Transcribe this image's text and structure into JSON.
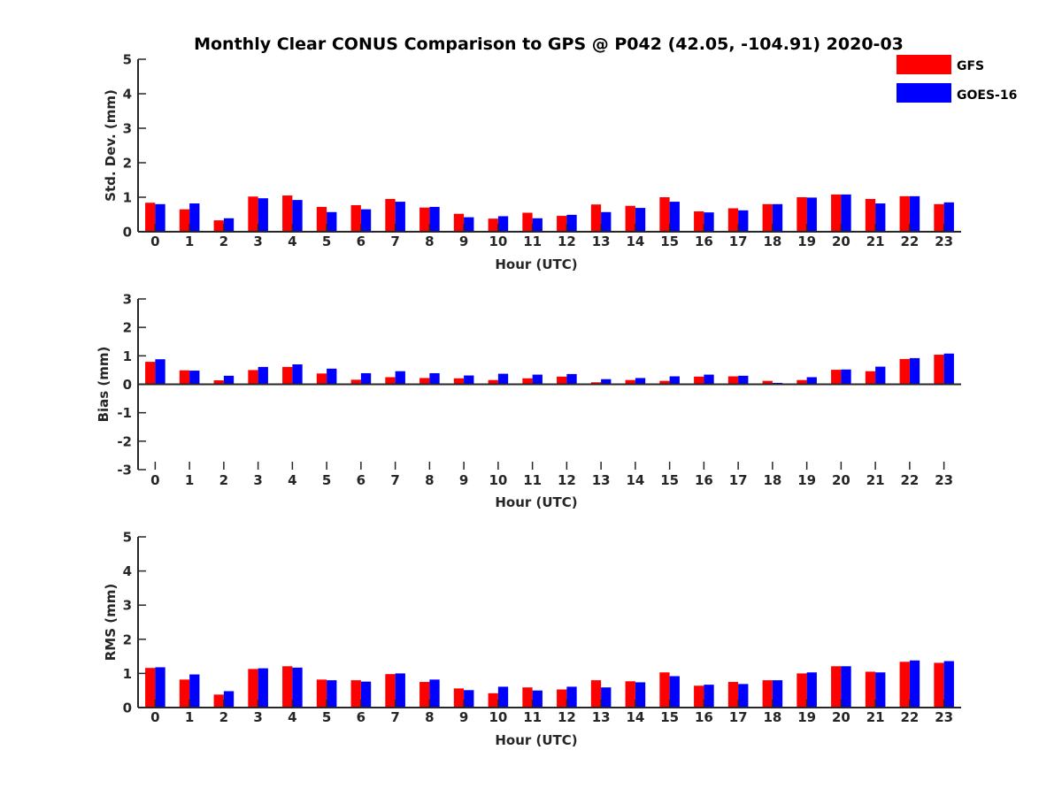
{
  "title": "Monthly Clear CONUS Comparison to GPS @ P042 (42.05, -104.91) 2020-03",
  "legend": [
    {
      "name": "GFS",
      "color": "#ff0000"
    },
    {
      "name": "GOES-16",
      "color": "#0000ff"
    }
  ],
  "chart_data": [
    {
      "type": "bar",
      "xlabel": "Hour (UTC)",
      "ylabel": "Std. Dev. (mm)",
      "ylim": [
        0,
        5
      ],
      "yticks": [
        "0",
        "1",
        "2",
        "3",
        "4",
        "5"
      ],
      "categories": [
        "0",
        "1",
        "2",
        "3",
        "4",
        "5",
        "6",
        "7",
        "8",
        "9",
        "10",
        "11",
        "12",
        "13",
        "14",
        "15",
        "16",
        "17",
        "18",
        "19",
        "20",
        "21",
        "22",
        "23"
      ],
      "series": [
        {
          "name": "GFS",
          "color": "#ff0000",
          "values": [
            0.84,
            0.65,
            0.33,
            1.02,
            1.05,
            0.72,
            0.77,
            0.95,
            0.7,
            0.52,
            0.38,
            0.55,
            0.46,
            0.79,
            0.75,
            1.0,
            0.59,
            0.68,
            0.8,
            1.0,
            1.08,
            0.95,
            1.03,
            0.8
          ]
        },
        {
          "name": "GOES-16",
          "color": "#0000ff",
          "values": [
            0.8,
            0.82,
            0.39,
            0.97,
            0.92,
            0.57,
            0.65,
            0.87,
            0.72,
            0.42,
            0.45,
            0.39,
            0.49,
            0.57,
            0.69,
            0.87,
            0.56,
            0.62,
            0.8,
            0.99,
            1.08,
            0.82,
            1.03,
            0.85
          ]
        }
      ]
    },
    {
      "type": "bar",
      "xlabel": "Hour (UTC)",
      "ylabel": "Bias (mm)",
      "ylim": [
        -3,
        3
      ],
      "yticks": [
        "-3",
        "-2",
        "-1",
        "0",
        "1",
        "2",
        "3"
      ],
      "categories": [
        "0",
        "1",
        "2",
        "3",
        "4",
        "5",
        "6",
        "7",
        "8",
        "9",
        "10",
        "11",
        "12",
        "13",
        "14",
        "15",
        "16",
        "17",
        "18",
        "19",
        "20",
        "21",
        "22",
        "23"
      ],
      "series": [
        {
          "name": "GFS",
          "color": "#ff0000",
          "values": [
            0.79,
            0.49,
            0.14,
            0.5,
            0.61,
            0.38,
            0.16,
            0.25,
            0.22,
            0.21,
            0.15,
            0.21,
            0.27,
            0.07,
            0.15,
            0.12,
            0.27,
            0.28,
            0.12,
            0.15,
            0.51,
            0.46,
            0.89,
            1.04
          ]
        },
        {
          "name": "GOES-16",
          "color": "#0000ff",
          "values": [
            0.88,
            0.48,
            0.3,
            0.61,
            0.7,
            0.55,
            0.39,
            0.46,
            0.39,
            0.31,
            0.37,
            0.34,
            0.36,
            0.18,
            0.22,
            0.28,
            0.34,
            0.3,
            0.05,
            0.25,
            0.52,
            0.62,
            0.92,
            1.08
          ]
        }
      ]
    },
    {
      "type": "bar",
      "xlabel": "Hour (UTC)",
      "ylabel": "RMS (mm)",
      "ylim": [
        0,
        5
      ],
      "yticks": [
        "0",
        "1",
        "2",
        "3",
        "4",
        "5"
      ],
      "categories": [
        "0",
        "1",
        "2",
        "3",
        "4",
        "5",
        "6",
        "7",
        "8",
        "9",
        "10",
        "11",
        "12",
        "13",
        "14",
        "15",
        "16",
        "17",
        "18",
        "19",
        "20",
        "21",
        "22",
        "23"
      ],
      "series": [
        {
          "name": "GFS",
          "color": "#ff0000",
          "values": [
            1.16,
            0.82,
            0.38,
            1.13,
            1.21,
            0.82,
            0.8,
            0.98,
            0.75,
            0.56,
            0.42,
            0.59,
            0.53,
            0.8,
            0.77,
            1.03,
            0.64,
            0.75,
            0.8,
            1.0,
            1.21,
            1.05,
            1.34,
            1.31
          ]
        },
        {
          "name": "GOES-16",
          "color": "#0000ff",
          "values": [
            1.18,
            0.97,
            0.48,
            1.15,
            1.17,
            0.8,
            0.76,
            1.0,
            0.82,
            0.51,
            0.61,
            0.5,
            0.61,
            0.59,
            0.74,
            0.92,
            0.67,
            0.69,
            0.8,
            1.03,
            1.21,
            1.03,
            1.38,
            1.36
          ]
        }
      ]
    }
  ]
}
